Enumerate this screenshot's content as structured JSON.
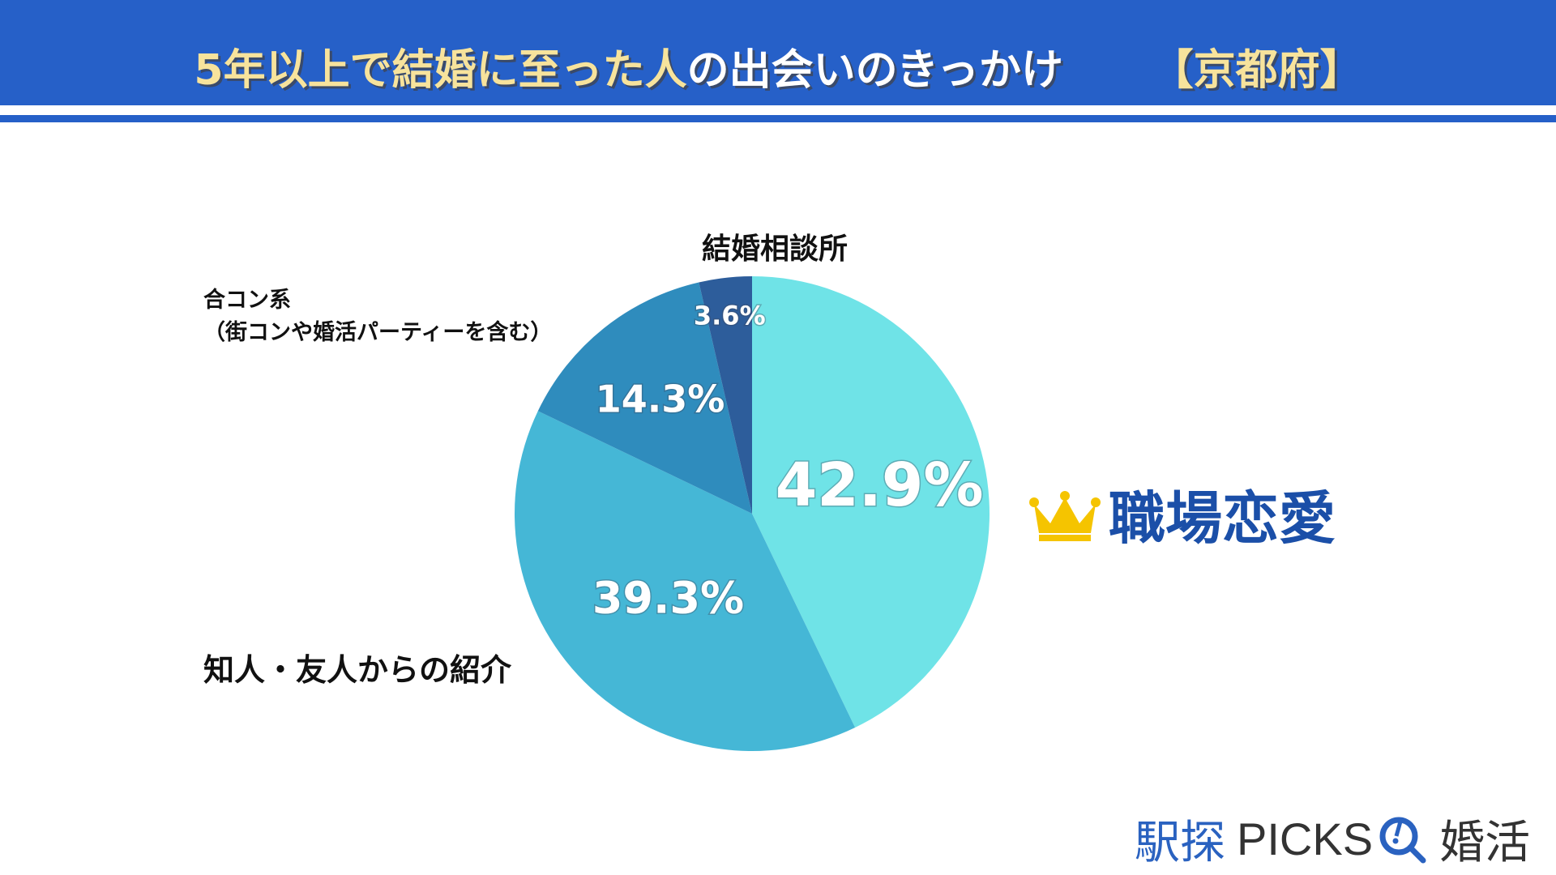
{
  "title": {
    "part1": "5年以上で結婚に至った人",
    "part2": "の出会いのきっかけ",
    "part3": "【京都府】"
  },
  "colors": {
    "header": "#2660c8",
    "title_yellow": "#f7e39c",
    "winner": "#1b4fa8"
  },
  "chart_data": {
    "type": "pie",
    "start": "top-clockwise",
    "slices": [
      {
        "label": "職場恋愛",
        "value": 42.9,
        "display": "42.9%",
        "color": "#6fe3e7"
      },
      {
        "label": "知人・友人からの紹介",
        "value": 39.3,
        "display": "39.3%",
        "color": "#45b7d6"
      },
      {
        "label": "合コン系（街コンや婚活パーティーを含む）",
        "value": 14.3,
        "display": "14.3%",
        "color": "#2f8cbd"
      },
      {
        "label": "結婚相談所",
        "value": 3.6,
        "display": "3.6%",
        "color": "#2d5d9b"
      }
    ]
  },
  "labels": {
    "top": "職場恋愛",
    "friends": "知人・友人からの紹介",
    "party_line1": "合コン系",
    "party_line2": "（街コンや婚活パーティーを含む）",
    "agency": "結婚相談所"
  },
  "logo": {
    "part1": "駅探",
    "part2": "PICKS",
    "part3": "婚活"
  }
}
